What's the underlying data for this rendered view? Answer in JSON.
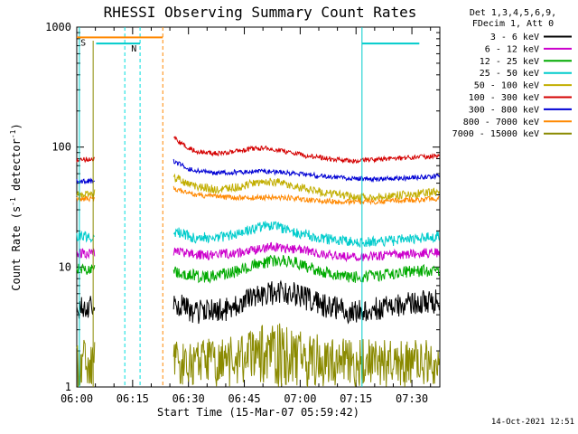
{
  "chart_data": {
    "type": "line",
    "title": "RHESSI Observing Summary Count Rates",
    "xlabel": "Start Time (15-Mar-07 05:59:42)",
    "ylabel_parts": [
      "Count Rate (s",
      "-1",
      " detector",
      "-1",
      ")"
    ],
    "x_axis": {
      "tick_labels": [
        "06:00",
        "06:15",
        "06:30",
        "06:45",
        "07:00",
        "07:15",
        "07:30"
      ],
      "tick_minutes": [
        0,
        15,
        30,
        45,
        60,
        75,
        90
      ],
      "minor_step_minutes": 5,
      "t_max": 97.5
    },
    "y_axis": {
      "scale": "log",
      "range": [
        1,
        1000
      ],
      "tick_labels": [
        "1",
        "10",
        "100",
        "1000"
      ],
      "tick_values": [
        1,
        10,
        100,
        1000
      ]
    },
    "legend": {
      "header_line1": "Det 1,3,4,5,6,9,",
      "header_line2": "FDecim 1, Att 0"
    },
    "series": [
      {
        "label": "3 - 6 keV",
        "color": "#000000",
        "noise": 0.1,
        "mode": "jitter",
        "segments": [
          [
            [
              0,
              4.6
            ],
            [
              4.9,
              4.6
            ]
          ],
          [
            [
              26,
              5.0
            ],
            [
              32,
              4.2
            ],
            [
              40,
              4.4
            ],
            [
              48,
              5.6
            ],
            [
              54,
              6.2
            ],
            [
              58,
              6.0
            ],
            [
              66,
              4.8
            ],
            [
              74,
              4.2
            ],
            [
              82,
              4.6
            ],
            [
              90,
              5.0
            ],
            [
              97.5,
              5.2
            ]
          ]
        ]
      },
      {
        "label": "6 - 12 keV",
        "color": "#cc00cc",
        "noise": 0.04,
        "mode": "jitter",
        "segments": [
          [
            [
              0,
              13
            ],
            [
              4.9,
              13
            ]
          ],
          [
            [
              26,
              13.5
            ],
            [
              34,
              12.5
            ],
            [
              42,
              13
            ],
            [
              48,
              14
            ],
            [
              53,
              14.8
            ],
            [
              58,
              14.2
            ],
            [
              66,
              13
            ],
            [
              74,
              12.2
            ],
            [
              82,
              12.4
            ],
            [
              90,
              13
            ],
            [
              97.5,
              13.2
            ]
          ]
        ]
      },
      {
        "label": "12 - 25 keV",
        "color": "#00aa00",
        "noise": 0.05,
        "mode": "jitter",
        "segments": [
          [
            [
              0,
              9.5
            ],
            [
              4.9,
              9.5
            ]
          ],
          [
            [
              26,
              9.2
            ],
            [
              34,
              8.2
            ],
            [
              42,
              9
            ],
            [
              48,
              10.5
            ],
            [
              54,
              11.5
            ],
            [
              58,
              11
            ],
            [
              66,
              9.2
            ],
            [
              74,
              8.2
            ],
            [
              82,
              8.6
            ],
            [
              90,
              9.2
            ],
            [
              97.5,
              9.4
            ]
          ]
        ]
      },
      {
        "label": "25 - 50 keV",
        "color": "#00cccc",
        "noise": 0.045,
        "mode": "jitter",
        "segments": [
          [
            [
              0,
              18
            ],
            [
              4.9,
              18
            ]
          ],
          [
            [
              26,
              20
            ],
            [
              32,
              17.5
            ],
            [
              40,
              18
            ],
            [
              46,
              20
            ],
            [
              50,
              22
            ],
            [
              54,
              21.5
            ],
            [
              60,
              19
            ],
            [
              68,
              17
            ],
            [
              76,
              16
            ],
            [
              84,
              16.5
            ],
            [
              92,
              17.5
            ],
            [
              97.5,
              18
            ]
          ]
        ]
      },
      {
        "label": "50 - 100 keV",
        "color": "#c2ae00",
        "noise": 0.035,
        "mode": "jitter",
        "segments": [
          [
            [
              0,
              41
            ],
            [
              4.9,
              41
            ]
          ],
          [
            [
              26,
              56
            ],
            [
              32,
              47
            ],
            [
              38,
              44
            ],
            [
              44,
              47
            ],
            [
              50,
              52
            ],
            [
              54,
              51
            ],
            [
              60,
              46
            ],
            [
              68,
              41
            ],
            [
              76,
              38
            ],
            [
              84,
              39
            ],
            [
              92,
              41
            ],
            [
              97.5,
              42
            ]
          ]
        ]
      },
      {
        "label": "100 - 300 keV",
        "color": "#d40000",
        "noise": 0.02,
        "mode": "jitter",
        "segments": [
          [
            [
              0,
              78
            ],
            [
              4.9,
              80
            ]
          ],
          [
            [
              26,
              125
            ],
            [
              28,
              106
            ],
            [
              32,
              92
            ],
            [
              38,
              88
            ],
            [
              44,
              93
            ],
            [
              48,
              98
            ],
            [
              52,
              97
            ],
            [
              56,
              92
            ],
            [
              62,
              84
            ],
            [
              68,
              80
            ],
            [
              74,
              77
            ],
            [
              82,
              79
            ],
            [
              90,
              82
            ],
            [
              97.5,
              84
            ]
          ]
        ]
      },
      {
        "label": "300 - 800 keV",
        "color": "#0000d4",
        "noise": 0.02,
        "mode": "jitter",
        "segments": [
          [
            [
              0,
              52
            ],
            [
              4.9,
              52
            ]
          ],
          [
            [
              26,
              76
            ],
            [
              30,
              66
            ],
            [
              36,
              61
            ],
            [
              44,
              62
            ],
            [
              50,
              63
            ],
            [
              56,
              61
            ],
            [
              64,
              58
            ],
            [
              72,
              55
            ],
            [
              80,
              54
            ],
            [
              88,
              55
            ],
            [
              97.5,
              57
            ]
          ]
        ]
      },
      {
        "label": "800 - 7000 keV",
        "color": "#ff8800",
        "noise": 0.022,
        "mode": "jitter",
        "segments": [
          [
            [
              0,
              37
            ],
            [
              4.9,
              37
            ]
          ],
          [
            [
              26,
              45
            ],
            [
              32,
              40
            ],
            [
              40,
              38
            ],
            [
              48,
              38
            ],
            [
              56,
              38
            ],
            [
              64,
              36
            ],
            [
              72,
              35
            ],
            [
              80,
              35
            ],
            [
              88,
              36
            ],
            [
              97.5,
              37
            ]
          ]
        ]
      },
      {
        "label": "7000 - 15000 keV",
        "color": "#8a8a00",
        "noise": 0.22,
        "mode": "spike",
        "segments": [
          [
            [
              0,
              1.5
            ],
            [
              4.9,
              1.5
            ]
          ],
          [
            [
              26,
              1.5
            ],
            [
              44,
              1.55
            ],
            [
              50,
              2.0
            ],
            [
              54,
              2.1
            ],
            [
              58,
              1.8
            ],
            [
              70,
              1.5
            ],
            [
              97.5,
              1.5
            ]
          ]
        ]
      }
    ],
    "draw_order": [
      8,
      0,
      2,
      1,
      3,
      4,
      7,
      6,
      5
    ],
    "annotations": {
      "vlines": [
        {
          "t": 0.7,
          "color": "#00cccc",
          "dashed": false,
          "from_value": 1000
        },
        {
          "t": 4.4,
          "color": "#8a8a00",
          "dashed": false,
          "from_value": 770
        },
        {
          "t": 12.9,
          "color": "#00dddd",
          "dashed": true,
          "from_value": 1000
        },
        {
          "t": 17.0,
          "color": "#00dddd",
          "dashed": true,
          "from_value": 1000
        },
        {
          "t": 23.1,
          "color": "#ff8800",
          "dashed": true,
          "from_value": 1000
        },
        {
          "t": 76.6,
          "color": "#00cccc",
          "dashed": false,
          "from_value": 1000
        }
      ],
      "flag_bars": [
        {
          "label": "S",
          "t0": 0,
          "t1": 23.1,
          "value": 820,
          "color": "#ff8800",
          "label_t": 1.0
        },
        {
          "label": "N",
          "t0": 5.2,
          "t1": 17.0,
          "value": 730,
          "color": "#00cccc",
          "label_t": 14.6
        },
        {
          "label": "",
          "t0": 76.6,
          "t1": 92.0,
          "value": 730,
          "color": "#00cccc",
          "label_t": 0
        }
      ]
    }
  },
  "footer": {
    "timestamp": "14-Oct-2021 12:51"
  }
}
